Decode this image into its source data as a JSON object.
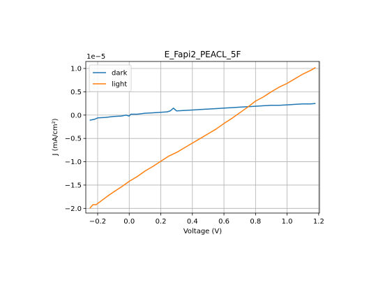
{
  "chart_data": {
    "type": "line",
    "title": "E_Fapi2_PEACL_5F",
    "xlabel": "Voltage (V)",
    "ylabel": "J (mA/cm²)",
    "y_scale_label": "1e−5",
    "xlim": [
      -0.275,
      1.205
    ],
    "ylim": [
      -2.1,
      1.15
    ],
    "y_unit_multiplier": 1e-05,
    "xticks": [
      -0.2,
      0.0,
      0.2,
      0.4,
      0.6,
      0.8,
      1.0,
      1.2
    ],
    "xtick_labels": [
      "−0.2",
      "0.0",
      "0.2",
      "0.4",
      "0.6",
      "0.8",
      "1.0",
      "1.2"
    ],
    "yticks": [
      -2.0,
      -1.5,
      -1.0,
      -0.5,
      0.0,
      0.5,
      1.0
    ],
    "ytick_labels": [
      "−2.0",
      "−1.5",
      "−1.0",
      "−0.5",
      "0.0",
      "0.5",
      "1.0"
    ],
    "grid": true,
    "legend_position": "upper-left",
    "series": [
      {
        "name": "dark",
        "color": "#1f77b4",
        "points": [
          [
            -0.25,
            -0.11
          ],
          [
            -0.22,
            -0.09
          ],
          [
            -0.2,
            -0.06
          ],
          [
            -0.15,
            -0.05
          ],
          [
            -0.1,
            -0.03
          ],
          [
            -0.05,
            -0.02
          ],
          [
            -0.02,
            0.0
          ],
          [
            0.0,
            -0.02
          ],
          [
            0.01,
            0.02
          ],
          [
            0.05,
            0.02
          ],
          [
            0.1,
            0.04
          ],
          [
            0.15,
            0.05
          ],
          [
            0.2,
            0.06
          ],
          [
            0.24,
            0.07
          ],
          [
            0.26,
            0.09
          ],
          [
            0.28,
            0.15
          ],
          [
            0.3,
            0.09
          ],
          [
            0.35,
            0.1
          ],
          [
            0.4,
            0.11
          ],
          [
            0.45,
            0.12
          ],
          [
            0.5,
            0.13
          ],
          [
            0.55,
            0.14
          ],
          [
            0.6,
            0.15
          ],
          [
            0.65,
            0.16
          ],
          [
            0.7,
            0.17
          ],
          [
            0.75,
            0.18
          ],
          [
            0.8,
            0.19
          ],
          [
            0.85,
            0.2
          ],
          [
            0.9,
            0.21
          ],
          [
            0.95,
            0.21
          ],
          [
            1.0,
            0.22
          ],
          [
            1.05,
            0.23
          ],
          [
            1.1,
            0.24
          ],
          [
            1.15,
            0.24
          ],
          [
            1.18,
            0.25
          ]
        ]
      },
      {
        "name": "light",
        "color": "#ff7f0e",
        "points": [
          [
            -0.25,
            -2.0
          ],
          [
            -0.23,
            -1.92
          ],
          [
            -0.21,
            -1.92
          ],
          [
            -0.17,
            -1.82
          ],
          [
            -0.13,
            -1.72
          ],
          [
            -0.1,
            -1.65
          ],
          [
            -0.05,
            -1.54
          ],
          [
            0.0,
            -1.42
          ],
          [
            0.05,
            -1.32
          ],
          [
            0.1,
            -1.2
          ],
          [
            0.15,
            -1.1
          ],
          [
            0.2,
            -0.99
          ],
          [
            0.25,
            -0.88
          ],
          [
            0.3,
            -0.8
          ],
          [
            0.35,
            -0.7
          ],
          [
            0.4,
            -0.6
          ],
          [
            0.45,
            -0.5
          ],
          [
            0.5,
            -0.4
          ],
          [
            0.55,
            -0.3
          ],
          [
            0.6,
            -0.18
          ],
          [
            0.65,
            -0.07
          ],
          [
            0.7,
            0.05
          ],
          [
            0.75,
            0.17
          ],
          [
            0.8,
            0.3
          ],
          [
            0.85,
            0.39
          ],
          [
            0.9,
            0.5
          ],
          [
            0.95,
            0.6
          ],
          [
            1.0,
            0.68
          ],
          [
            1.05,
            0.78
          ],
          [
            1.1,
            0.88
          ],
          [
            1.15,
            0.96
          ],
          [
            1.18,
            1.02
          ]
        ]
      }
    ]
  }
}
